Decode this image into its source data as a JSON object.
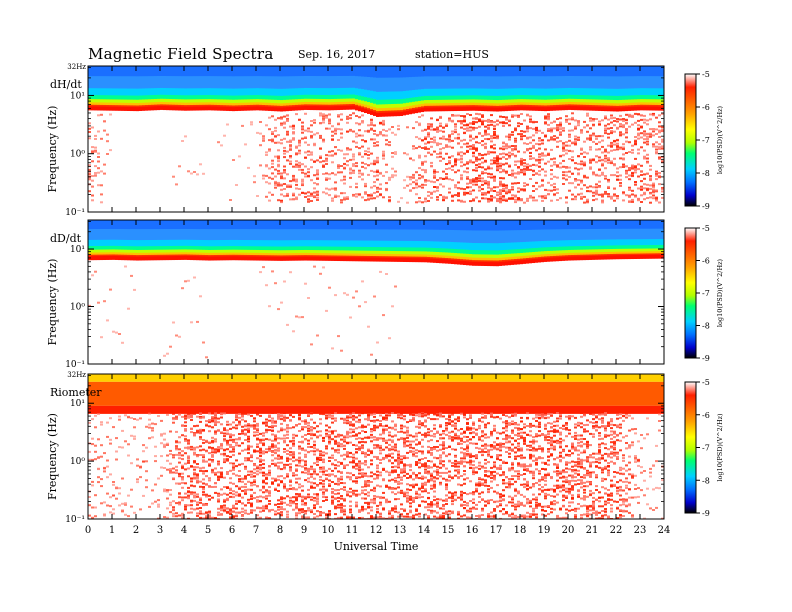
{
  "header": {
    "title": "Magnetic  Field  Spectra",
    "date": "Sep. 16, 2017",
    "station": "station=HUS"
  },
  "chart_data": {
    "type": "heatmap",
    "xlabel": "Universal Time",
    "x_ticks": [
      "0",
      "1",
      "2",
      "3",
      "4",
      "5",
      "6",
      "7",
      "8",
      "9",
      "10",
      "11",
      "12",
      "13",
      "14",
      "15",
      "16",
      "17",
      "18",
      "19",
      "20",
      "21",
      "22",
      "23",
      "24"
    ],
    "xlim": [
      0,
      24
    ],
    "colorbar": {
      "ticks": [
        "-5",
        "-6",
        "-7",
        "-8",
        "-9"
      ],
      "label": "log10(PSD)(V^2/Hz)",
      "range": [
        -9,
        -5
      ],
      "colors": [
        "#000000",
        "#0000cc",
        "#0070ff",
        "#00d0ff",
        "#00ff70",
        "#b0ff00",
        "#ffff00",
        "#ffa000",
        "#ff2000",
        "#ffffff"
      ]
    },
    "panels": [
      {
        "name": "dH/dt",
        "ylabel": "Frequency  (Hz)",
        "top_label": "32Hz",
        "y_ticks": [
          "10¹",
          "10⁰",
          "10⁻¹"
        ],
        "ylim": [
          0.1,
          32
        ],
        "yscale": "log",
        "ridge_hz": [
          6.5,
          6.4,
          6.3,
          6.6,
          6.4,
          6.5,
          6.3,
          6.5,
          6.2,
          6.6,
          6.5,
          6.7,
          5.0,
          5.2,
          6.2,
          6.3,
          6.4,
          6.2,
          6.5,
          6.3,
          6.6,
          6.4,
          6.2,
          6.5,
          6.4
        ],
        "floor_hz": 0.15,
        "activity": [
          0.45,
          0.02,
          0.02,
          0.02,
          0.05,
          0.03,
          0.04,
          0.08,
          0.6,
          0.5,
          0.45,
          0.4,
          0.6,
          0.05,
          0.6,
          0.55,
          0.75,
          0.8,
          0.65,
          0.55,
          0.5,
          0.55,
          0.6,
          0.65,
          0.55
        ]
      },
      {
        "name": "dD/dt",
        "ylabel": "Frequency  (Hz)",
        "top_label": "",
        "y_ticks": [
          "10¹",
          "10⁰",
          "10⁻¹"
        ],
        "ylim": [
          0.1,
          32
        ],
        "yscale": "log",
        "ridge_hz": [
          7.5,
          7.6,
          7.4,
          7.5,
          7.6,
          7.4,
          7.5,
          7.4,
          7.3,
          7.4,
          7.3,
          7.2,
          7.1,
          7.0,
          6.9,
          6.5,
          6.0,
          5.9,
          6.4,
          7.0,
          7.4,
          7.6,
          7.8,
          7.9,
          8.0
        ],
        "floor_hz": 0.12,
        "activity": [
          0.04,
          0.04,
          0.03,
          0.03,
          0.04,
          0.03,
          0.03,
          0.03,
          0.04,
          0.04,
          0.04,
          0.05,
          0.04,
          0.03,
          0.03,
          0.03,
          0.03,
          0.03,
          0.02,
          0.02,
          0.02,
          0.02,
          0.02,
          0.02,
          0.02
        ]
      },
      {
        "name": "Riometer",
        "ylabel": "Frequency  (Hz)",
        "top_label": "32Hz",
        "y_ticks": [
          "10¹",
          "10⁰",
          "10⁻¹"
        ],
        "ylim": [
          0.1,
          32
        ],
        "yscale": "log",
        "ridge_hz": [
          9,
          9,
          9,
          9,
          9,
          9,
          9,
          9,
          9,
          9,
          9,
          9,
          9,
          9,
          9,
          9,
          9,
          9,
          9,
          9,
          9,
          9,
          9,
          9,
          9
        ],
        "floor_hz": 0.1,
        "activity": [
          0.25,
          0.2,
          0.15,
          0.2,
          0.7,
          0.75,
          0.75,
          0.75,
          0.75,
          0.75,
          0.75,
          0.75,
          0.75,
          0.75,
          0.75,
          0.75,
          0.75,
          0.75,
          0.75,
          0.75,
          0.75,
          0.75,
          0.75,
          0.15,
          0.1
        ]
      }
    ]
  }
}
